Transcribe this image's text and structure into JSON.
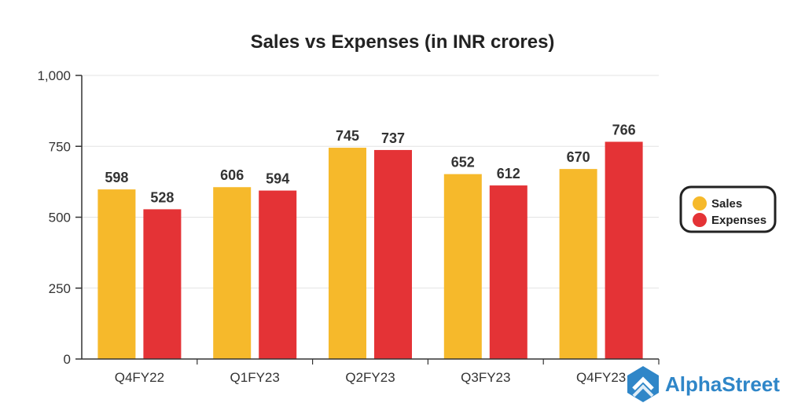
{
  "chart_data": {
    "type": "bar",
    "title": "Sales vs Expenses (in INR crores)",
    "categories": [
      "Q4FY22",
      "Q1FY23",
      "Q2FY23",
      "Q3FY23",
      "Q4FY23"
    ],
    "series": [
      {
        "name": "Sales",
        "values": [
          598,
          606,
          745,
          652,
          670
        ],
        "color": "#f6b92b"
      },
      {
        "name": "Expenses",
        "values": [
          528,
          594,
          737,
          612,
          766
        ],
        "color": "#e43336"
      }
    ],
    "ylim": [
      0,
      1000
    ],
    "yticks": [
      0,
      250,
      500,
      750,
      1000
    ],
    "ytick_labels": [
      "0",
      "250",
      "500",
      "750",
      "1,000"
    ],
    "xlabel": "",
    "ylabel": "",
    "grid": true,
    "legend_position": "right"
  },
  "brand": {
    "name": "AlphaStreet",
    "color": "#2f86c8"
  }
}
